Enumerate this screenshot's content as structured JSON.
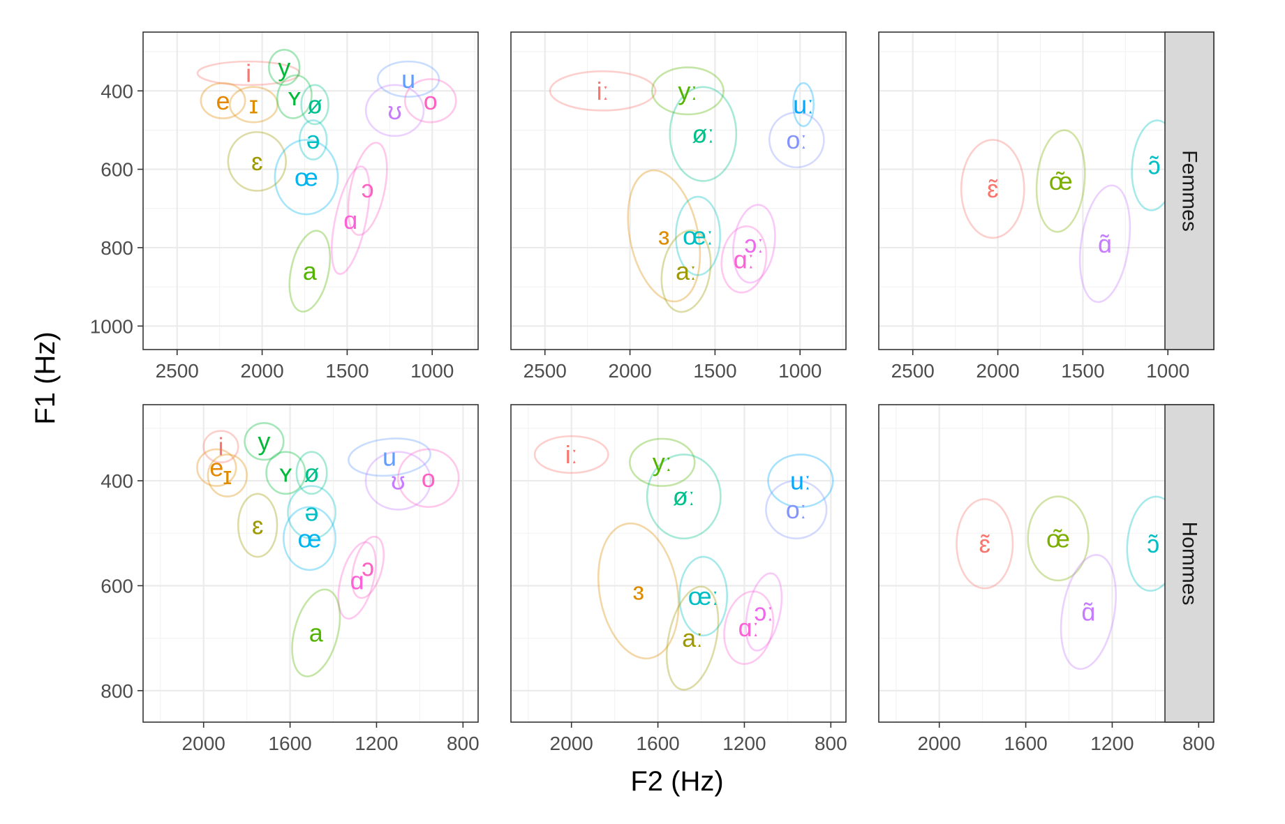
{
  "chart_data": {
    "type": "scatter",
    "subtype": "vowel-ellipse-plot",
    "xlabel": "F2 (Hz)",
    "ylabel": "F1 (Hz)",
    "x_reversed": true,
    "y_reversed": true,
    "grid": true,
    "layout": {
      "rows": [
        "Femmes",
        "Hommes"
      ],
      "columns": 3,
      "x_scales": "free per row",
      "y_scales": "free per row"
    },
    "rows": [
      {
        "name": "Femmes",
        "xlim": [
          2700,
          730
        ],
        "ylim": [
          250,
          1060
        ],
        "xticks": [
          2500,
          2000,
          1500,
          1000
        ],
        "xtick_labels": [
          "2500",
          "2000",
          "1500",
          "1000"
        ],
        "yticks": [
          400,
          600,
          800,
          1000
        ],
        "ytick_labels": [
          "400",
          "600",
          "800",
          "1000"
        ],
        "panels": [
          {
            "vowels": [
              {
                "label": "i",
                "color": "#F8766D",
                "f2": 2080,
                "f1": 355,
                "sd_f2": 300,
                "sd_f1": 30,
                "angle": 0
              },
              {
                "label": "y",
                "color": "#00BA38",
                "f2": 1870,
                "f1": 340,
                "sd_f2": 90,
                "sd_f1": 45,
                "angle": 0
              },
              {
                "label": "e",
                "color": "#E58700",
                "f2": 2230,
                "f1": 425,
                "sd_f2": 130,
                "sd_f1": 45,
                "angle": 0
              },
              {
                "label": "ɪ",
                "color": "#DE8C00",
                "f2": 2050,
                "f1": 435,
                "sd_f2": 140,
                "sd_f1": 45,
                "angle": 0
              },
              {
                "label": "ʏ",
                "color": "#00BA38",
                "f2": 1810,
                "f1": 415,
                "sd_f2": 100,
                "sd_f1": 55,
                "angle": 10
              },
              {
                "label": "ø",
                "color": "#00C08B",
                "f2": 1690,
                "f1": 435,
                "sd_f2": 80,
                "sd_f1": 50,
                "angle": 0
              },
              {
                "label": "u",
                "color": "#619CFF",
                "f2": 1140,
                "f1": 370,
                "sd_f2": 180,
                "sd_f1": 45,
                "angle": 0
              },
              {
                "label": "ʊ",
                "color": "#C77CFF",
                "f2": 1220,
                "f1": 450,
                "sd_f2": 170,
                "sd_f1": 65,
                "angle": 0
              },
              {
                "label": "o",
                "color": "#FF61C3",
                "f2": 1010,
                "f1": 425,
                "sd_f2": 150,
                "sd_f1": 55,
                "angle": 0
              },
              {
                "label": "ɛ",
                "color": "#9E9900",
                "f2": 2030,
                "f1": 580,
                "sd_f2": 170,
                "sd_f1": 75,
                "angle": -10
              },
              {
                "label": "ə",
                "color": "#00BFC4",
                "f2": 1700,
                "f1": 525,
                "sd_f2": 80,
                "sd_f1": 50,
                "angle": 0
              },
              {
                "label": "œ",
                "color": "#00B4F0",
                "f2": 1740,
                "f1": 620,
                "sd_f2": 185,
                "sd_f1": 95,
                "angle": 0
              },
              {
                "label": "ɔ",
                "color": "#FF61C3",
                "f2": 1380,
                "f1": 650,
                "sd_f2": 100,
                "sd_f1": 120,
                "angle": 12
              },
              {
                "label": "ɑ",
                "color": "#FC61D5",
                "f2": 1480,
                "f1": 730,
                "sd_f2": 90,
                "sd_f1": 140,
                "angle": 12
              },
              {
                "label": "a",
                "color": "#53B400",
                "f2": 1720,
                "f1": 860,
                "sd_f2": 110,
                "sd_f1": 105,
                "angle": 12
              }
            ]
          },
          {
            "vowels": [
              {
                "label": "iː",
                "color": "#F8766D",
                "f2": 2160,
                "f1": 400,
                "sd_f2": 310,
                "sd_f1": 50,
                "angle": 0
              },
              {
                "label": "yː",
                "color": "#53B400",
                "f2": 1660,
                "f1": 400,
                "sd_f2": 210,
                "sd_f1": 60,
                "angle": 0
              },
              {
                "label": "uː",
                "color": "#00A9FF",
                "f2": 980,
                "f1": 435,
                "sd_f2": 60,
                "sd_f1": 55,
                "angle": 0
              },
              {
                "label": "øː",
                "color": "#00C08B",
                "f2": 1570,
                "f1": 510,
                "sd_f2": 195,
                "sd_f1": 120,
                "angle": 0
              },
              {
                "label": "oː",
                "color": "#8494FF",
                "f2": 1020,
                "f1": 525,
                "sd_f2": 160,
                "sd_f1": 70,
                "angle": -20
              },
              {
                "label": "ɜ",
                "color": "#DE8C00",
                "f2": 1800,
                "f1": 770,
                "sd_f2": 200,
                "sd_f1": 170,
                "angle": -12
              },
              {
                "label": "œː",
                "color": "#00BFC4",
                "f2": 1600,
                "f1": 770,
                "sd_f2": 130,
                "sd_f1": 100,
                "angle": 0
              },
              {
                "label": "ɔː",
                "color": "#ED68ED",
                "f2": 1270,
                "f1": 790,
                "sd_f2": 120,
                "sd_f1": 100,
                "angle": 8
              },
              {
                "label": "ɑː",
                "color": "#FC61D5",
                "f2": 1330,
                "f1": 830,
                "sd_f2": 130,
                "sd_f1": 85,
                "angle": 8
              },
              {
                "label": "aː",
                "color": "#9E9900",
                "f2": 1670,
                "f1": 860,
                "sd_f2": 140,
                "sd_f1": 105,
                "angle": 10
              }
            ]
          },
          {
            "vowels": [
              {
                "label": "ɛ̃",
                "color": "#F8766D",
                "f2": 2030,
                "f1": 650,
                "sd_f2": 185,
                "sd_f1": 125,
                "angle": 0
              },
              {
                "label": "œ̃",
                "color": "#7CAE00",
                "f2": 1630,
                "f1": 630,
                "sd_f2": 140,
                "sd_f1": 130,
                "angle": 5
              },
              {
                "label": "ɔ̃",
                "color": "#00BFC4",
                "f2": 1080,
                "f1": 590,
                "sd_f2": 130,
                "sd_f1": 115,
                "angle": 5
              },
              {
                "label": "ɑ̃",
                "color": "#C77CFF",
                "f2": 1370,
                "f1": 790,
                "sd_f2": 140,
                "sd_f1": 150,
                "angle": 8
              }
            ]
          }
        ]
      },
      {
        "name": "Hommes",
        "xlim": [
          2280,
          730
        ],
        "ylim": [
          255,
          860
        ],
        "xticks": [
          2000,
          1600,
          1200,
          800
        ],
        "xtick_labels": [
          "2000",
          "1600",
          "1200",
          "800"
        ],
        "yticks": [
          400,
          600,
          800
        ],
        "ytick_labels": [
          "400",
          "600",
          "800"
        ],
        "panels": [
          {
            "vowels": [
              {
                "label": "i",
                "color": "#F8766D",
                "f2": 1920,
                "f1": 335,
                "sd_f2": 80,
                "sd_f1": 30,
                "angle": 0
              },
              {
                "label": "y",
                "color": "#00BA38",
                "f2": 1720,
                "f1": 325,
                "sd_f2": 90,
                "sd_f1": 35,
                "angle": 0
              },
              {
                "label": "e",
                "color": "#E58700",
                "f2": 1940,
                "f1": 375,
                "sd_f2": 90,
                "sd_f1": 35,
                "angle": 0
              },
              {
                "label": "ɪ",
                "color": "#DE8C00",
                "f2": 1890,
                "f1": 390,
                "sd_f2": 90,
                "sd_f1": 40,
                "angle": 0
              },
              {
                "label": "ʏ",
                "color": "#00BA38",
                "f2": 1620,
                "f1": 385,
                "sd_f2": 90,
                "sd_f1": 40,
                "angle": 0
              },
              {
                "label": "ø",
                "color": "#00C08B",
                "f2": 1500,
                "f1": 385,
                "sd_f2": 70,
                "sd_f1": 40,
                "angle": 0
              },
              {
                "label": "u",
                "color": "#619CFF",
                "f2": 1140,
                "f1": 355,
                "sd_f2": 190,
                "sd_f1": 35,
                "angle": -5
              },
              {
                "label": "ʊ",
                "color": "#C77CFF",
                "f2": 1100,
                "f1": 400,
                "sd_f2": 150,
                "sd_f1": 55,
                "angle": 0
              },
              {
                "label": "o",
                "color": "#FF61C3",
                "f2": 960,
                "f1": 395,
                "sd_f2": 140,
                "sd_f1": 55,
                "angle": 0
              },
              {
                "label": "ɛ",
                "color": "#9E9900",
                "f2": 1750,
                "f1": 485,
                "sd_f2": 90,
                "sd_f1": 60,
                "angle": 0
              },
              {
                "label": "ə",
                "color": "#00BFC4",
                "f2": 1500,
                "f1": 460,
                "sd_f2": 110,
                "sd_f1": 50,
                "angle": 0
              },
              {
                "label": "œ",
                "color": "#00B4F0",
                "f2": 1510,
                "f1": 510,
                "sd_f2": 120,
                "sd_f1": 60,
                "angle": 0
              },
              {
                "label": "ɔ",
                "color": "#FF61C3",
                "f2": 1240,
                "f1": 565,
                "sd_f2": 65,
                "sd_f1": 60,
                "angle": 15
              },
              {
                "label": "ɑ",
                "color": "#FC61D5",
                "f2": 1290,
                "f1": 590,
                "sd_f2": 75,
                "sd_f1": 75,
                "angle": 15
              },
              {
                "label": "a",
                "color": "#53B400",
                "f2": 1480,
                "f1": 690,
                "sd_f2": 100,
                "sd_f1": 85,
                "angle": 15
              }
            ]
          },
          {
            "vowels": [
              {
                "label": "iː",
                "color": "#F8766D",
                "f2": 2000,
                "f1": 350,
                "sd_f2": 170,
                "sd_f1": 35,
                "angle": 0
              },
              {
                "label": "yː",
                "color": "#53B400",
                "f2": 1580,
                "f1": 365,
                "sd_f2": 150,
                "sd_f1": 45,
                "angle": 0
              },
              {
                "label": "øː",
                "color": "#00C08B",
                "f2": 1480,
                "f1": 430,
                "sd_f2": 170,
                "sd_f1": 80,
                "angle": 0
              },
              {
                "label": "uː",
                "color": "#00A9FF",
                "f2": 940,
                "f1": 400,
                "sd_f2": 150,
                "sd_f1": 50,
                "angle": 0
              },
              {
                "label": "oː",
                "color": "#8494FF",
                "f2": 960,
                "f1": 455,
                "sd_f2": 140,
                "sd_f1": 55,
                "angle": 0
              },
              {
                "label": "ɜ",
                "color": "#DE8C00",
                "f2": 1690,
                "f1": 610,
                "sd_f2": 180,
                "sd_f1": 130,
                "angle": -10
              },
              {
                "label": "œː",
                "color": "#00BFC4",
                "f2": 1390,
                "f1": 620,
                "sd_f2": 110,
                "sd_f1": 75,
                "angle": 0
              },
              {
                "label": "ɔː",
                "color": "#ED68ED",
                "f2": 1110,
                "f1": 650,
                "sd_f2": 75,
                "sd_f1": 75,
                "angle": 12
              },
              {
                "label": "ɑː",
                "color": "#FC61D5",
                "f2": 1180,
                "f1": 680,
                "sd_f2": 110,
                "sd_f1": 70,
                "angle": 12
              },
              {
                "label": "aː",
                "color": "#9E9900",
                "f2": 1440,
                "f1": 700,
                "sd_f2": 110,
                "sd_f1": 100,
                "angle": 12
              }
            ]
          },
          {
            "vowels": [
              {
                "label": "ɛ̃",
                "color": "#F8766D",
                "f2": 1790,
                "f1": 520,
                "sd_f2": 130,
                "sd_f1": 85,
                "angle": 0
              },
              {
                "label": "œ̃",
                "color": "#7CAE00",
                "f2": 1450,
                "f1": 510,
                "sd_f2": 140,
                "sd_f1": 80,
                "angle": 0
              },
              {
                "label": "ɔ̃",
                "color": "#00BFC4",
                "f2": 1010,
                "f1": 520,
                "sd_f2": 120,
                "sd_f1": 90,
                "angle": 5
              },
              {
                "label": "ɑ̃",
                "color": "#C77CFF",
                "f2": 1310,
                "f1": 650,
                "sd_f2": 120,
                "sd_f1": 110,
                "angle": 10
              }
            ]
          }
        ]
      }
    ]
  }
}
